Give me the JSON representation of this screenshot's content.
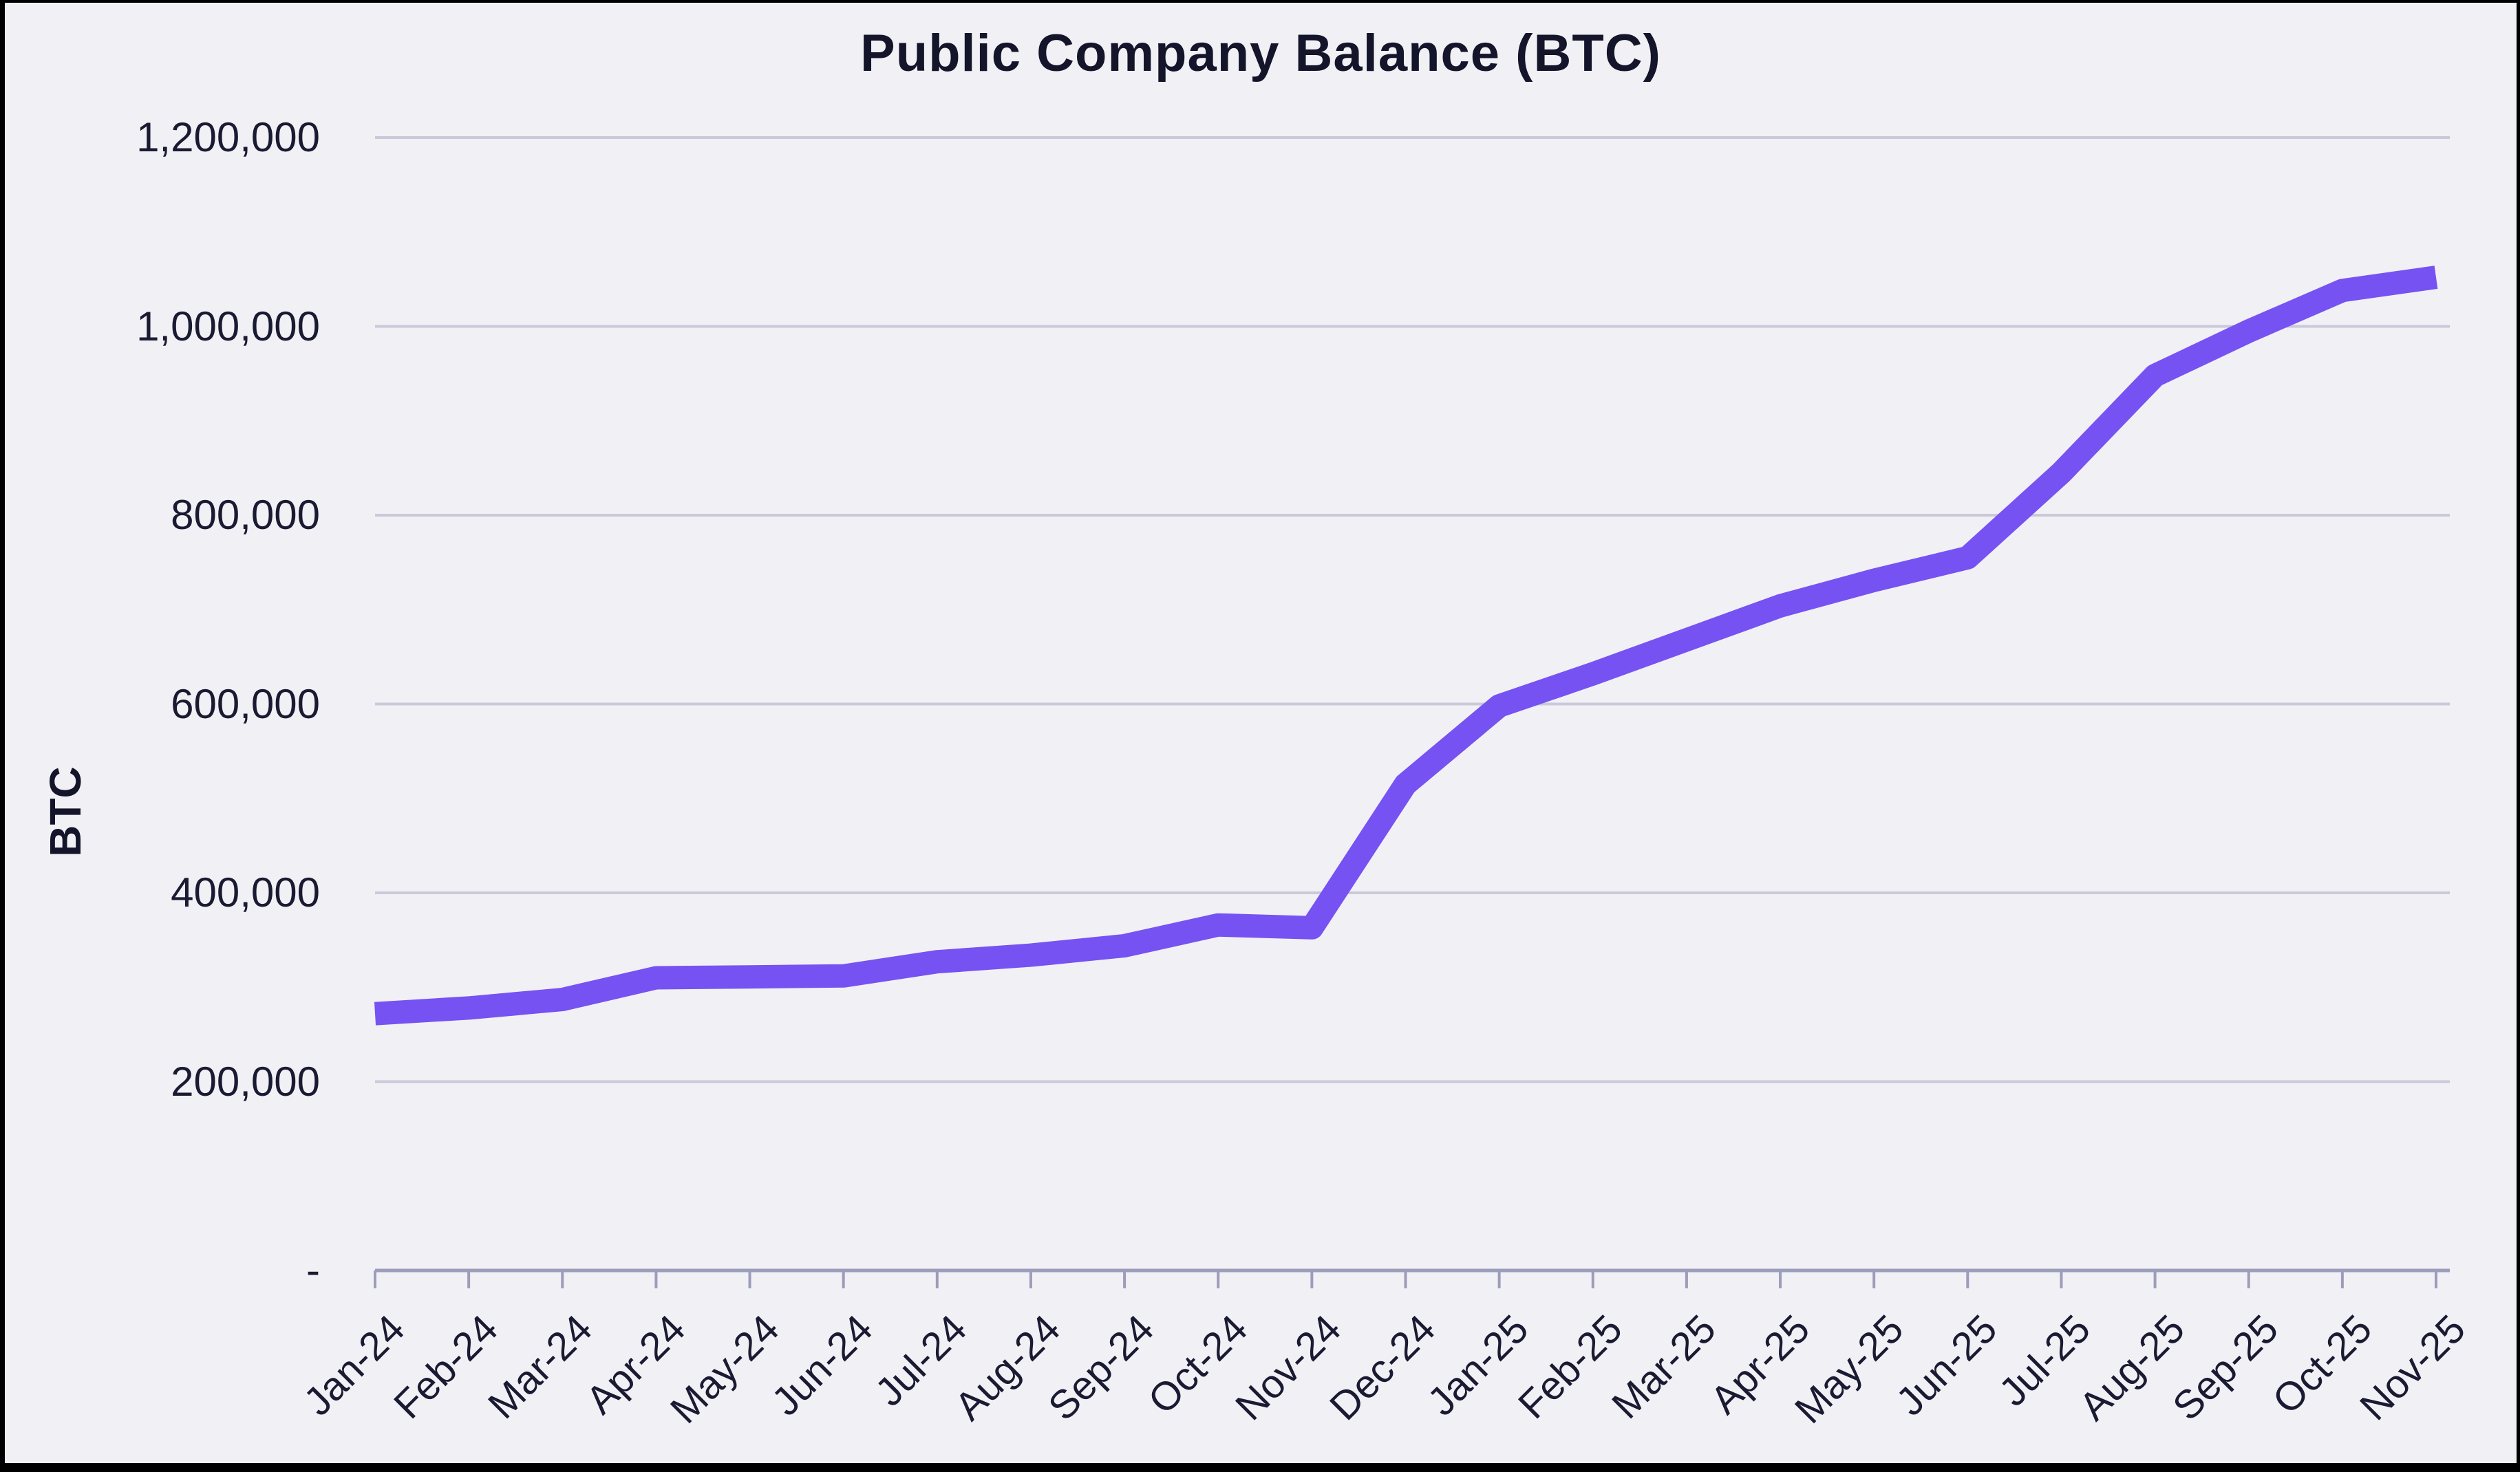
{
  "chart_data": {
    "type": "line",
    "title": "Public Company Balance (BTC)",
    "xlabel": "",
    "ylabel": "BTC",
    "categories": [
      "Jan-24",
      "Feb-24",
      "Mar-24",
      "Apr-24",
      "May-24",
      "Jun-24",
      "Jul-24",
      "Aug-24",
      "Sep-24",
      "Oct-24",
      "Nov-24",
      "Dec-24",
      "Jan-25",
      "Feb-25",
      "Mar-25",
      "Apr-25",
      "May-25",
      "Jun-25",
      "Jul-25",
      "Aug-25",
      "Sep-25",
      "Oct-25",
      "Nov-25"
    ],
    "values": [
      272000,
      278000,
      287000,
      310000,
      311000,
      312000,
      327000,
      334000,
      344000,
      366000,
      363000,
      515000,
      598000,
      632000,
      668000,
      704000,
      731000,
      755000,
      845000,
      948000,
      995000,
      1038000,
      1052000
    ],
    "ylim": [
      0,
      1200000
    ],
    "ytick_interval": 200000,
    "ytick_labels": [
      "-",
      "200,000",
      "400,000",
      "600,000",
      "800,000",
      "1,000,000",
      "1,200,000"
    ],
    "grid": "horizontal",
    "legend": "none",
    "line_color": "#7652F2"
  },
  "colors": {
    "background": "#F1F1F5",
    "frame": "#000000",
    "text": "#1A1A33",
    "title": "#14142B",
    "gridline": "#C9C9D9",
    "axis": "#9C9CBB",
    "line": "#7652F2"
  }
}
